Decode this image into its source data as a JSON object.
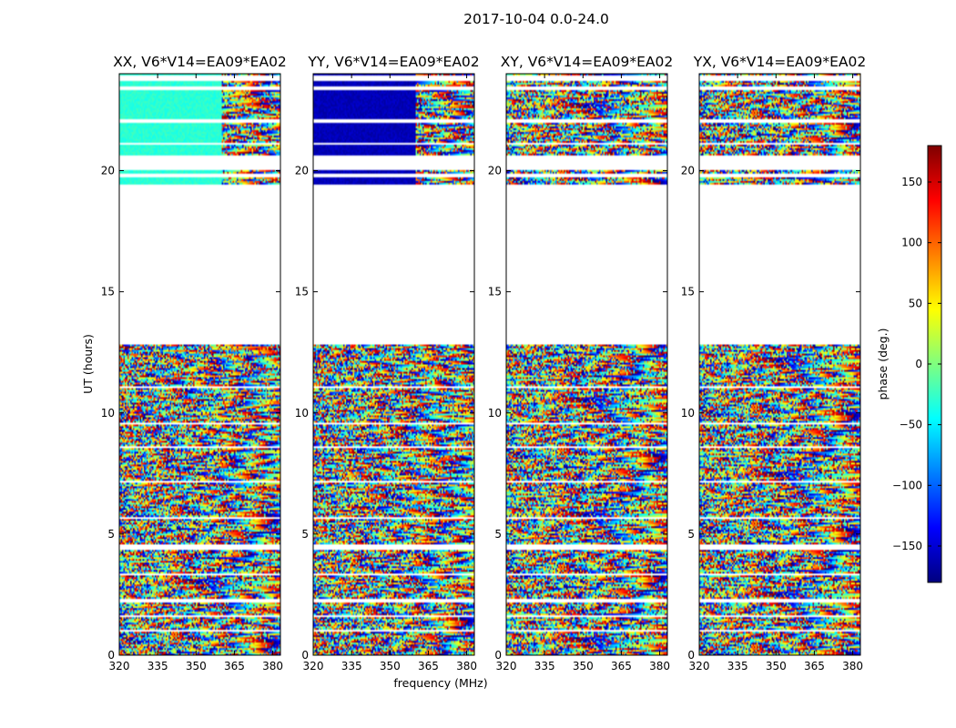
{
  "suptitle": "2017-10-04 0.0-24.0",
  "chart_data": {
    "type": "heatmap",
    "title": "2017-10-04 0.0-24.0",
    "xlabel": "frequency (MHz)",
    "ylabel": "UT (hours)",
    "xlim": [
      320,
      383
    ],
    "ylim": [
      0,
      24
    ],
    "x_ticks": [
      320,
      335,
      350,
      365,
      380
    ],
    "y_ticks": [
      0,
      5,
      10,
      15,
      20
    ],
    "panels": [
      {
        "title": "XX, V6*V14=EA09*EA02",
        "coherent_freq_end": 360,
        "coherent_value": -30
      },
      {
        "title": "YY, V6*V14=EA09*EA02",
        "coherent_freq_end": 360,
        "coherent_value": -160
      },
      {
        "title": "XY, V6*V14=EA09*EA02",
        "coherent_freq_end": null,
        "coherent_value": null
      },
      {
        "title": "YX, V6*V14=EA09*EA02",
        "coherent_freq_end": null,
        "coherent_value": null
      }
    ],
    "data_gaps_hours": [
      [
        0.95,
        1.05
      ],
      [
        1.55,
        1.62
      ],
      [
        2.2,
        2.3
      ],
      [
        3.3,
        3.38
      ],
      [
        4.35,
        4.55
      ],
      [
        5.65,
        5.72
      ],
      [
        7.1,
        7.2
      ],
      [
        8.55,
        8.62
      ],
      [
        9.5,
        9.6
      ],
      [
        11.0,
        11.1
      ],
      [
        12.8,
        19.4
      ],
      [
        19.75,
        19.9
      ],
      [
        20.05,
        20.6
      ],
      [
        21.05,
        21.15
      ],
      [
        21.95,
        22.1
      ],
      [
        23.3,
        23.45
      ],
      [
        23.7,
        23.9
      ]
    ],
    "colorbar": {
      "label": "phase (deg.)",
      "range": [
        -180,
        180
      ],
      "ticks": [
        -150,
        -100,
        -50,
        0,
        50,
        100,
        150
      ],
      "tick_labels": [
        "−150",
        "−100",
        "−50",
        "0",
        "50",
        "100",
        "150"
      ]
    }
  }
}
